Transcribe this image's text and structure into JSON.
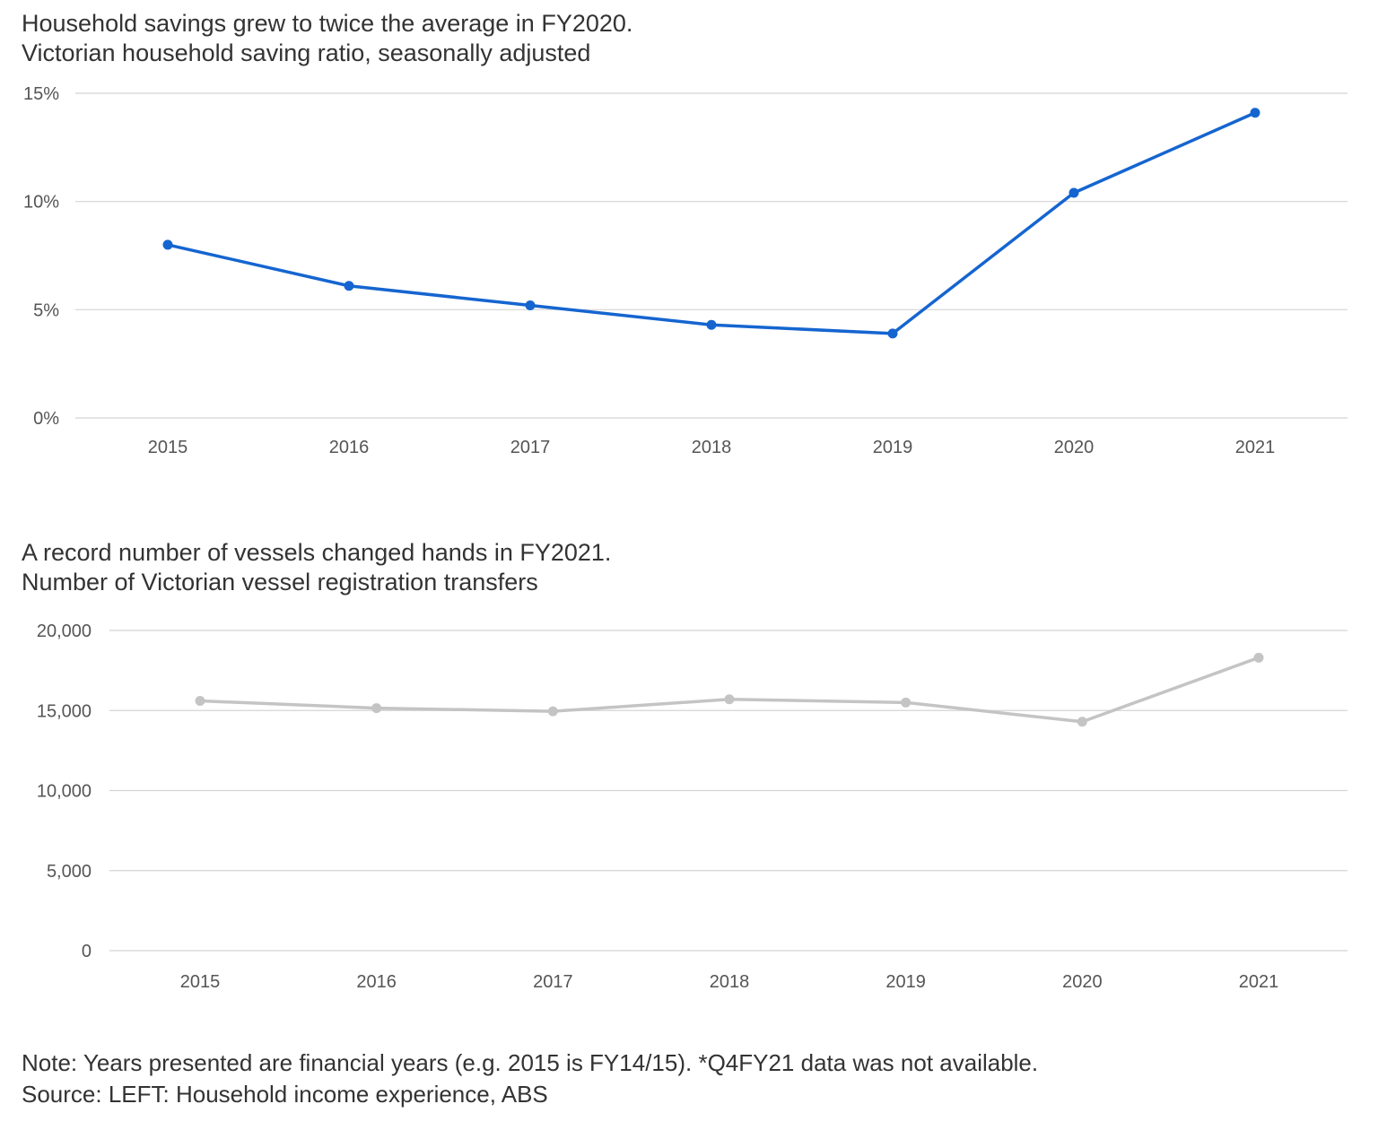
{
  "chart_data": [
    {
      "type": "line",
      "title": "Household savings grew to twice the average in FY2020.",
      "subtitle": "Victorian household saving ratio, seasonally adjusted",
      "categories": [
        "2015",
        "2016",
        "2017",
        "2018",
        "2019",
        "2020",
        "2021"
      ],
      "series": [
        {
          "values": [
            8.0,
            6.1,
            5.2,
            4.3,
            3.9,
            10.4,
            14.1
          ]
        }
      ],
      "ylim": [
        0,
        15
      ],
      "yticks": [
        0,
        5,
        10,
        15
      ],
      "ytick_labels": [
        "0%",
        "5%",
        "10%",
        "15%"
      ],
      "grid": true,
      "color": "#1565d0"
    },
    {
      "type": "line",
      "title": "A record number of vessels changed hands in FY2021.",
      "subtitle": "Number of Victorian vessel registration transfers",
      "categories": [
        "2015",
        "2016",
        "2017",
        "2018",
        "2019",
        "2020",
        "2021"
      ],
      "series": [
        {
          "values": [
            15600,
            15150,
            14950,
            15700,
            15500,
            14300,
            18300
          ]
        }
      ],
      "ylim": [
        0,
        20000
      ],
      "yticks": [
        0,
        5000,
        10000,
        15000,
        20000
      ],
      "ytick_labels": [
        "0",
        "5,000",
        "10,000",
        "15,000",
        "20,000"
      ],
      "grid": true,
      "color": "#c4c4c4"
    }
  ],
  "footer": {
    "note": "Note: Years presented are financial years (e.g. 2015 is FY14/15). *Q4FY21 data was not available.",
    "source": "Source: LEFT: Household income experience, ABS"
  }
}
